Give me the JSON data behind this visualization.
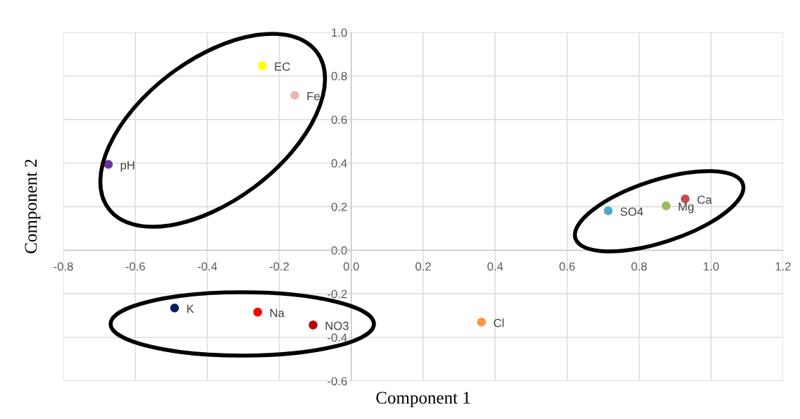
{
  "chart_data": {
    "type": "scatter",
    "xlabel": "Component 1",
    "ylabel": "Component 2",
    "xlim": [
      -0.8,
      1.2
    ],
    "xticks": [
      {
        "value": -0.8,
        "label": "-0.8"
      },
      {
        "value": -0.6,
        "label": "-0.6"
      },
      {
        "value": -0.4,
        "label": "-0.4"
      },
      {
        "value": -0.2,
        "label": "-0.2"
      },
      {
        "value": 0,
        "label": "0.0"
      },
      {
        "value": 0.2,
        "label": "0.2"
      },
      {
        "value": 0.4,
        "label": "0.4"
      },
      {
        "value": 0.6,
        "label": "0.6"
      },
      {
        "value": 0.8,
        "label": "0.8"
      },
      {
        "value": 1.0,
        "label": "1.0"
      },
      {
        "value": 1.2,
        "label": "1.2"
      }
    ],
    "ylim": [
      -0.6,
      1.0
    ],
    "yticks": [
      {
        "value": -0.6,
        "label": "-0.6"
      },
      {
        "value": -0.4,
        "label": "-0.4"
      },
      {
        "value": -0.2,
        "label": "-0.2"
      },
      {
        "value": 0,
        "label": "0.0"
      },
      {
        "value": 0.2,
        "label": "0.2"
      },
      {
        "value": 0.4,
        "label": "0.4"
      },
      {
        "value": 0.6,
        "label": "0.6"
      },
      {
        "value": 0.8,
        "label": "0.8"
      },
      {
        "value": 1.0,
        "label": "1.0"
      }
    ],
    "grid": true,
    "marker": "circle",
    "series": [
      {
        "name": "EC",
        "color": "#ffff00",
        "x": [
          -0.247
        ],
        "values": [
          0.847
        ]
      },
      {
        "name": "Fe",
        "color": "#e6b9b8",
        "x": [
          -0.157
        ],
        "values": [
          0.711
        ]
      },
      {
        "name": "pH",
        "color": "#7030a0",
        "x": [
          -0.675
        ],
        "values": [
          0.394
        ]
      },
      {
        "name": "K",
        "color": "#002060",
        "x": [
          -0.491
        ],
        "values": [
          -0.265
        ]
      },
      {
        "name": "Na",
        "color": "#ff0000",
        "x": [
          -0.26
        ],
        "values": [
          -0.284
        ]
      },
      {
        "name": "NO3",
        "color": "#c00000",
        "x": [
          -0.106
        ],
        "values": [
          -0.343
        ]
      },
      {
        "name": "Cl",
        "color": "#f79646",
        "x": [
          0.362
        ],
        "values": [
          -0.33
        ]
      },
      {
        "name": "SO4",
        "color": "#4bacc6",
        "x": [
          0.714
        ],
        "values": [
          0.181
        ]
      },
      {
        "name": "Mg",
        "color": "#9bbb59",
        "x": [
          0.875
        ],
        "values": [
          0.204
        ]
      },
      {
        "name": "Ca",
        "color": "#c0504d",
        "x": [
          0.928
        ],
        "values": [
          0.236
        ]
      }
    ]
  }
}
